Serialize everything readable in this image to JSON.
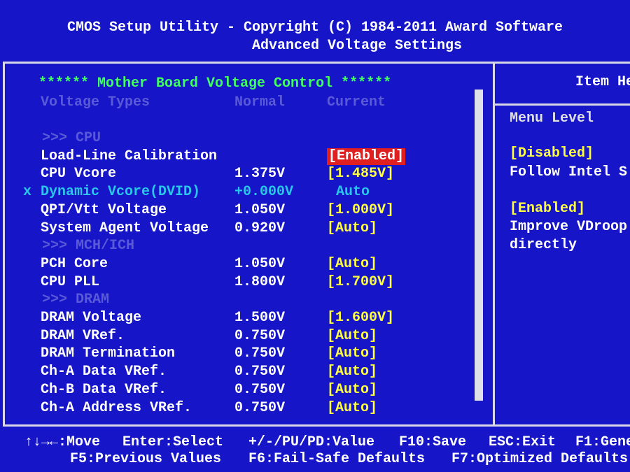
{
  "header": {
    "title": "CMOS Setup Utility - Copyright (C) 1984-2011 Award Software",
    "subtitle": "Advanced Voltage Settings"
  },
  "main": {
    "heading": "****** Mother Board Voltage Control ******",
    "columns": [
      "Voltage Types",
      "Normal",
      "Current"
    ],
    "rows": [
      {
        "group": ">>> CPU"
      },
      {
        "label": "Load-Line Calibration",
        "current": "[Enabled]",
        "selected": true
      },
      {
        "label": "CPU Vcore",
        "normal": "1.375V",
        "current": "[1.485V]"
      },
      {
        "marker": "x",
        "label": "Dynamic Vcore(DVID)",
        "normal": "+0.000V",
        "current": "Auto"
      },
      {
        "label": "QPI/Vtt Voltage",
        "normal": "1.050V",
        "current": "[1.000V]"
      },
      {
        "label": "System Agent Voltage",
        "normal": "0.920V",
        "current": "[Auto]"
      },
      {
        "group": ">>> MCH/ICH"
      },
      {
        "label": "PCH Core",
        "normal": "1.050V",
        "current": "[Auto]"
      },
      {
        "label": "CPU PLL",
        "normal": "1.800V",
        "current": "[1.700V]"
      },
      {
        "group": ">>> DRAM"
      },
      {
        "label": "DRAM Voltage",
        "normal": "1.500V",
        "current": "[1.600V]"
      },
      {
        "label": "DRAM VRef.",
        "normal": "0.750V",
        "current": "[Auto]"
      },
      {
        "label": "DRAM Termination",
        "normal": "0.750V",
        "current": "[Auto]"
      },
      {
        "label": "Ch-A Data VRef.",
        "normal": "0.750V",
        "current": "[Auto]"
      },
      {
        "label": "Ch-B Data VRef.",
        "normal": "0.750V",
        "current": "[Auto]"
      },
      {
        "label": "Ch-A Address VRef.",
        "normal": "0.750V",
        "current": "[Auto]"
      }
    ]
  },
  "help": {
    "title": "Item He",
    "menu_level": "Menu Level",
    "lines": [
      {
        "text": "[Disabled]",
        "option": true
      },
      {
        "text": "Follow Intel S"
      },
      {
        "text": "[Enabled]",
        "option": true
      },
      {
        "text": "Improve VDroop"
      },
      {
        "text": "directly"
      }
    ]
  },
  "footer": {
    "line1": [
      "↑↓→←:Move",
      "Enter:Select",
      "+/-/PU/PD:Value",
      "F10:Save",
      "ESC:Exit",
      "F1:Gene"
    ],
    "line2": [
      "F5:Previous Values",
      "F6:Fail-Safe Defaults",
      "F7:Optimized Defaults"
    ]
  }
}
